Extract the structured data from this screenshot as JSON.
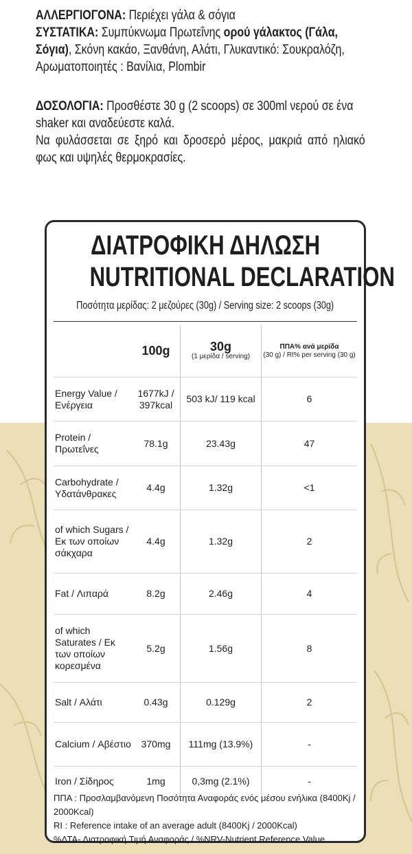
{
  "allergens": {
    "label": "ΑΛΛΕΡΓΙΟΓΟΝΑ:",
    "text": "Περιέχει γάλα & σόγια"
  },
  "ingredients": {
    "label": "ΣΥΣΤΑΤΙΚΑ:",
    "text_1": "Συμπύκνωμα Πρωτεΐνης",
    "bold": "ορού γάλακτος (Γάλα, Σόγια)",
    "text_2": ", Σκόνη κακάο, Ξανθάνη, Αλάτι, Γλυκαντικό: Σουκραλόζη, Αρωματοποιητές : Βανίλια, Plombir"
  },
  "dosage": {
    "label": "ΔΟΣΟΛΟΓΙΑ:",
    "text": "Προσθέστε 30 g (2 scoops) σε 300ml νερού σε ένα shaker και αναδεύεστε καλά."
  },
  "storage": "Να φυλάσσεται σε ξηρό και δροσερό μέρος, μακριά από ηλιακό φως και υψηλές θερμοκρασίες.",
  "card": {
    "title_1": "ΔΙΑΤΡΟΦΙΚΗ ΔΗΛΩΣΗ",
    "title_2": "NUTRITIONAL DECLARATION",
    "serving": "Ποσότητα μερίδας: 2 μεζούρες (30g) / Serving size: 2 scoops (30g)",
    "table": {
      "header": {
        "per_100g": "100g",
        "per_serving": "30g",
        "per_serving_note": "(1 μερίδα / serving)",
        "ri": "ΠΠΑ% ανά μερίδα",
        "ri_note": "(30 g) / RI% per serving (30 g)"
      },
      "rows": [
        [
          "Energy Value / Ενέργεια",
          "1677kJ / 397kcal",
          "503 kJ/ 119 kcal",
          "6"
        ],
        [
          "Protein / Πρωτεΐνες",
          "78.1g",
          "23.43g",
          "47"
        ],
        [
          "Carbohydrate / Υδατάνθρακες",
          "4.4g",
          "1.32g",
          "<1"
        ],
        [
          "of which Sugars / Εκ των οποίων σάκχαρα",
          "4.4g",
          "1.32g",
          "2"
        ],
        [
          "Fat / Λιπαρά",
          "8.2g",
          "2.46g",
          "4"
        ],
        [
          "of which Saturates / Εκ των οποίων κορεσμένα",
          "5.2g",
          "1.56g",
          "8"
        ],
        [
          "Salt / Αλάτι",
          "0.43g",
          "0.129g",
          "2"
        ],
        [
          "Calcium / Αβέστιο",
          "370mg",
          "111mg (13.9%)",
          "-"
        ],
        [
          "Iron / Σίδηρος",
          "1mg",
          "0,3mg (2.1%)",
          "-"
        ]
      ]
    },
    "footnotes": [
      "ΠΠΑ : Προσλαμβανόμενη Ποσότητα Αναφοράς ενός μέσου ενήλικα (8400Kj / 2000Kcal)",
      "RI : Reference intake of an average adult (8400Kj / 2000Kcal)",
      "%ΔΤΑ- Διατροφική Τιμή Αναφοράς / %NRV-Nutrient Reference Value"
    ]
  }
}
